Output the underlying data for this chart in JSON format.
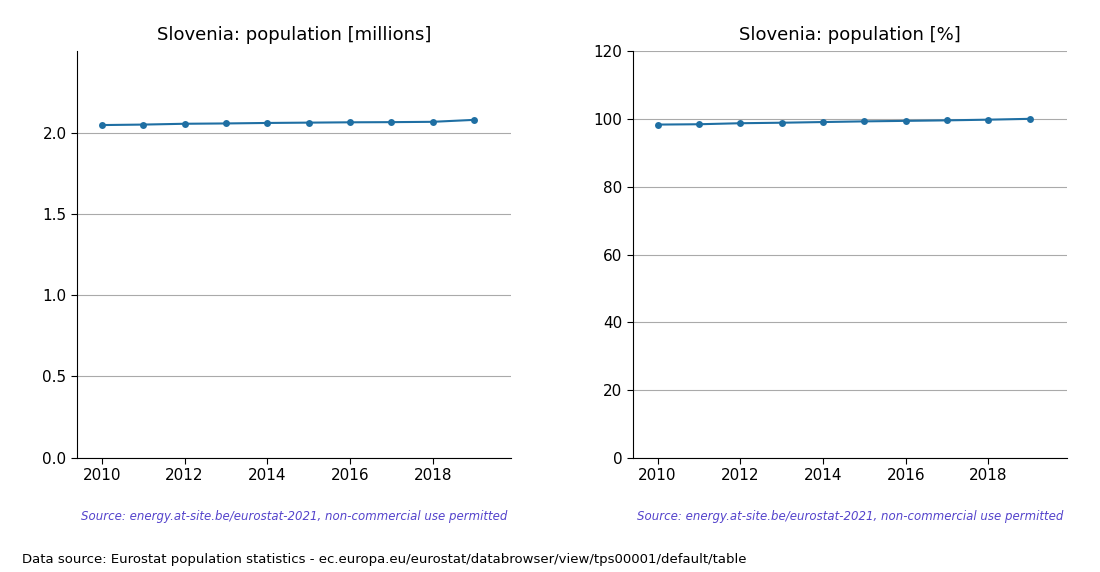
{
  "years": [
    2010,
    2011,
    2012,
    2013,
    2014,
    2015,
    2016,
    2017,
    2018,
    2019
  ],
  "population_millions": [
    2.047,
    2.05,
    2.055,
    2.057,
    2.06,
    2.062,
    2.064,
    2.065,
    2.067,
    2.079
  ],
  "population_pct": [
    98.4,
    98.5,
    98.8,
    98.95,
    99.15,
    99.35,
    99.5,
    99.65,
    99.85,
    100.1
  ],
  "title_millions": "Slovenia: population [millions]",
  "title_pct": "Slovenia: population [%]",
  "source_text": "Source: energy.at-site.be/eurostat-2021, non-commercial use permitted",
  "footer_text": "Data source: Eurostat population statistics - ec.europa.eu/eurostat/databrowser/view/tps00001/default/table",
  "line_color": "#1f6fa3",
  "source_color": "#5544cc",
  "ylim_millions": [
    0.0,
    2.5
  ],
  "ylim_pct": [
    0,
    120
  ],
  "yticks_millions": [
    0.0,
    0.5,
    1.0,
    1.5,
    2.0
  ],
  "yticks_pct": [
    0,
    20,
    40,
    60,
    80,
    100,
    120
  ],
  "xticks": [
    2010,
    2012,
    2014,
    2016,
    2018
  ],
  "grid_color": "#aaaaaa",
  "bg_color": "#ffffff",
  "spine_color": "#000000"
}
